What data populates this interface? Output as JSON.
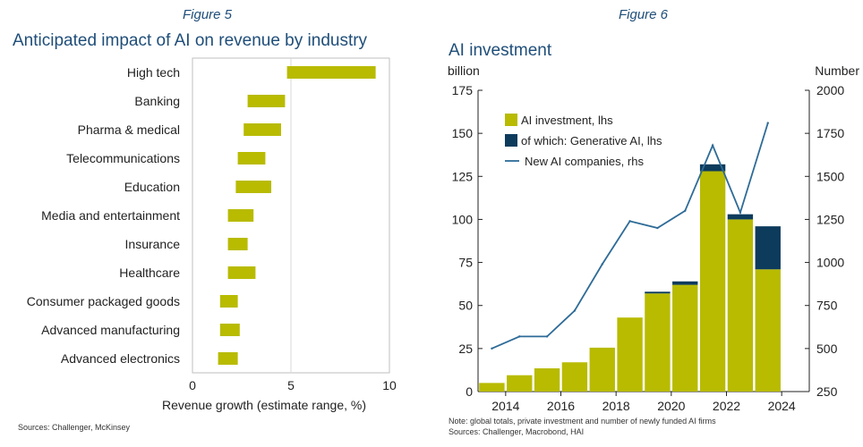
{
  "figure5": {
    "figure_label": "Figure 5",
    "source": "Sources: Challenger, McKinsey"
  },
  "figure6": {
    "figure_label": "Figure 6",
    "note": "Note: global totals, private investment and number of newly funded AI firms",
    "source": "Sources: Challenger, Macrobond, HAI"
  },
  "colors": {
    "olive": "#b8bb00",
    "navy": "#0d3b5c",
    "line": "#2e6b97",
    "title": "#1f4e79"
  },
  "chart_data": [
    {
      "type": "bar",
      "orientation": "horizontal-range",
      "title": "Anticipated impact of AI on revenue by industry",
      "xlabel": "Revenue growth (estimate range, %)",
      "xlim": [
        0,
        10
      ],
      "xticks": [
        0,
        5,
        10
      ],
      "categories": [
        "High tech",
        "Banking",
        "Pharma & medical",
        "Telecommunications",
        "Education",
        "Media and entertainment",
        "Insurance",
        "Healthcare",
        "Consumer packaged goods",
        "Advanced manufacturing",
        "Advanced electronics"
      ],
      "ranges": [
        [
          4.8,
          9.3
        ],
        [
          2.8,
          4.7
        ],
        [
          2.6,
          4.5
        ],
        [
          2.3,
          3.7
        ],
        [
          2.2,
          4.0
        ],
        [
          1.8,
          3.1
        ],
        [
          1.8,
          2.8
        ],
        [
          1.8,
          3.2
        ],
        [
          1.4,
          2.3
        ],
        [
          1.4,
          2.4
        ],
        [
          1.3,
          2.3
        ]
      ]
    },
    {
      "type": "bar",
      "title": "AI investment",
      "ylabel_left": "billion",
      "ylabel_right": "Number",
      "ylim_left": [
        0,
        175
      ],
      "ylim_right": [
        250,
        2000
      ],
      "yticks_left": [
        0,
        25,
        50,
        75,
        100,
        125,
        150,
        175
      ],
      "yticks_right": [
        250,
        500,
        750,
        1000,
        1250,
        1500,
        1750,
        2000
      ],
      "xlim": [
        2013,
        2025
      ],
      "xticks": [
        2014,
        2016,
        2018,
        2020,
        2022,
        2024
      ],
      "categories": [
        2013,
        2014,
        2015,
        2016,
        2017,
        2018,
        2019,
        2020,
        2021,
        2022,
        2023
      ],
      "series": [
        {
          "name": "AI investment, lhs",
          "kind": "bar",
          "values": [
            5,
            9.5,
            13.5,
            17,
            25.5,
            43,
            57,
            62,
            128,
            100,
            71
          ]
        },
        {
          "name": "of which: Generative AI, lhs",
          "kind": "bar-stacked",
          "values": [
            0,
            0,
            0,
            0,
            0,
            0,
            1,
            2,
            4,
            3,
            25
          ]
        },
        {
          "name": "New AI companies, rhs",
          "kind": "line",
          "axis": "right",
          "values": [
            500,
            570,
            570,
            720,
            990,
            1240,
            1200,
            1300,
            1680,
            1290,
            1810
          ]
        }
      ]
    }
  ]
}
